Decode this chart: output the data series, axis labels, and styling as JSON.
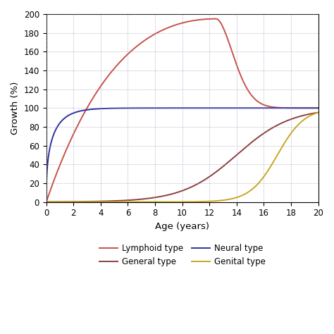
{
  "title": "",
  "xlabel": "Age (years)",
  "ylabel": "Growth (%)",
  "xlim": [
    0,
    20
  ],
  "ylim": [
    0,
    200
  ],
  "xticks": [
    0,
    2,
    4,
    6,
    8,
    10,
    12,
    14,
    16,
    18,
    20
  ],
  "yticks": [
    0,
    20,
    40,
    60,
    80,
    100,
    120,
    140,
    160,
    180,
    200
  ],
  "legend": [
    {
      "label": "Lymphoid type",
      "color": "#c8524a"
    },
    {
      "label": "Neural type",
      "color": "#3030a0"
    },
    {
      "label": "General type",
      "color": "#8b4040"
    },
    {
      "label": "Genital type",
      "color": "#c8a820"
    }
  ],
  "background_color": "#ffffff",
  "grid_color": "#9999bb",
  "figsize": [
    4.74,
    4.74
  ],
  "dpi": 100
}
